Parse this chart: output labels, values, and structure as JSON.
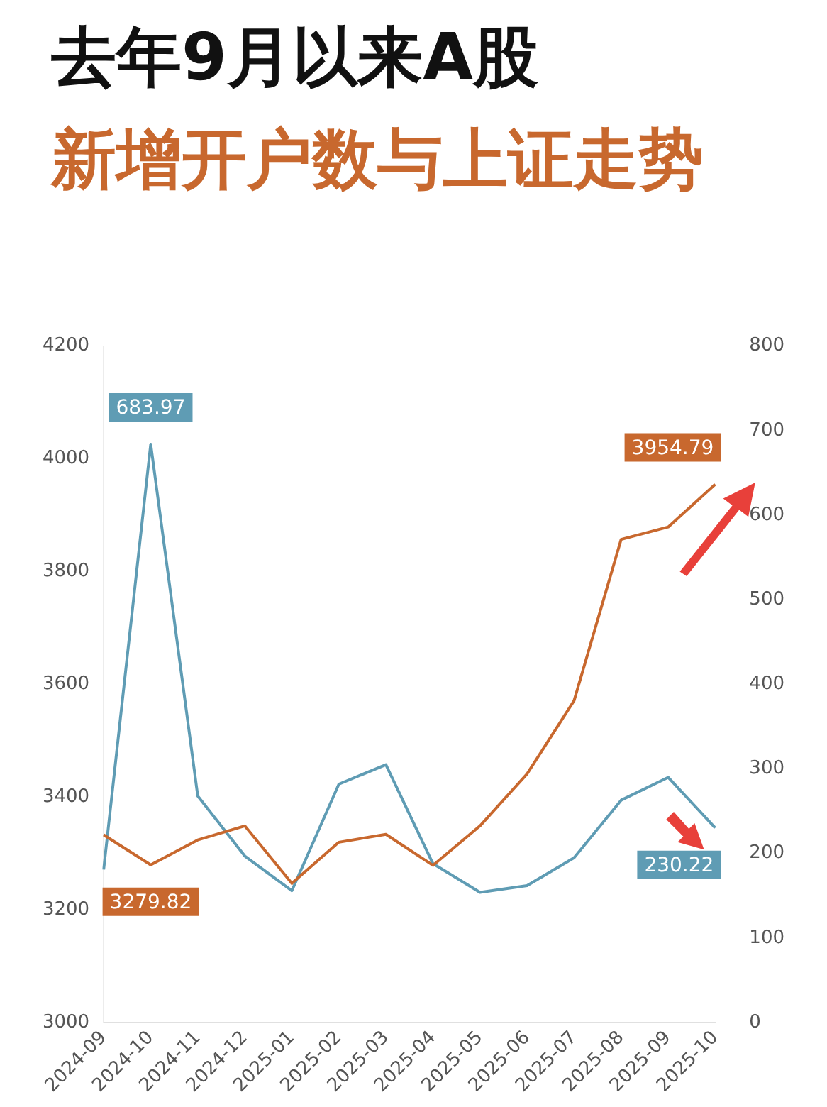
{
  "chart_data": {
    "type": "line",
    "title": "去年9月以来A股",
    "subtitle": "新增开户数与上证走势",
    "categories": [
      "2024-09",
      "2024-10",
      "2024-11",
      "2024-12",
      "2025-01",
      "2025-02",
      "2025-03",
      "2025-04",
      "2025-05",
      "2025-06",
      "2025-07",
      "2025-08",
      "2025-09",
      "2025-10"
    ],
    "series": [
      {
        "color": "#c8682e",
        "values": [
          3333,
          3279.82,
          3324,
          3349,
          3247,
          3320,
          3334,
          3279,
          3349,
          3441,
          3571,
          3857,
          3879,
          3954.79
        ],
        "value_labels": [
          null,
          "3279.82",
          null,
          null,
          null,
          null,
          null,
          null,
          null,
          null,
          null,
          null,
          null,
          "3954.79"
        ]
      },
      {
        "color": "#5f9cb4",
        "axis": "y2",
        "values": [
          181,
          683.97,
          268,
          197,
          156,
          282,
          305,
          188,
          154,
          162,
          195,
          263,
          290,
          230.22
        ],
        "value_labels": [
          null,
          "683.97",
          null,
          null,
          null,
          null,
          null,
          null,
          null,
          null,
          null,
          null,
          null,
          "230.22"
        ]
      }
    ],
    "ylim": [
      3000,
      4200
    ],
    "yticks": [
      3000,
      3200,
      3400,
      3600,
      3800,
      4000,
      4200
    ],
    "y2lim": [
      0,
      800
    ],
    "y2ticks": [
      0,
      100,
      200,
      300,
      400,
      500,
      600,
      700,
      800
    ],
    "grid": false,
    "legend": false,
    "marker": "none",
    "line_style": "solid"
  }
}
